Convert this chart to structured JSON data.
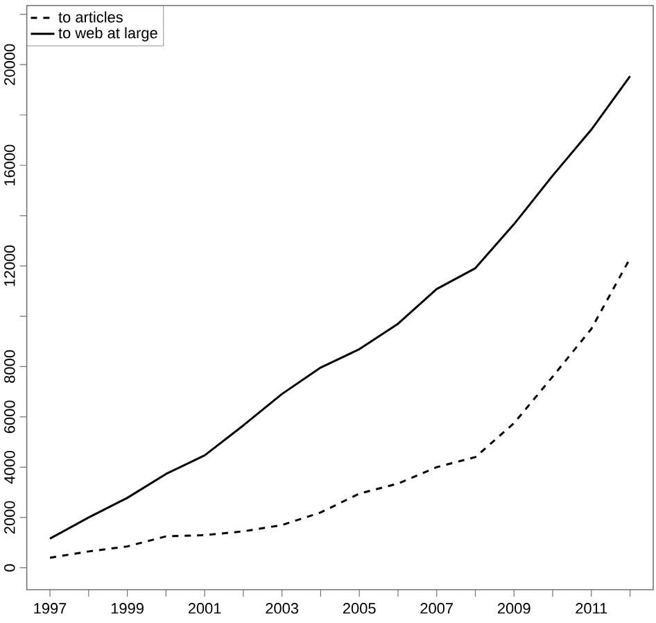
{
  "chart_data": {
    "type": "line",
    "x": [
      1997,
      1998,
      1999,
      2000,
      2001,
      2002,
      2003,
      2004,
      2005,
      2006,
      2007,
      2008,
      2009,
      2010,
      2011,
      2012
    ],
    "xlim": [
      1996.4,
      2012.6
    ],
    "ylim": [
      -870,
      22350
    ],
    "xticks": [
      1997,
      {
        "value": 1998,
        "label": null
      },
      1999,
      {
        "value": 2000,
        "label": null
      },
      2001,
      {
        "value": 2002,
        "label": null
      },
      2003,
      {
        "value": 2004,
        "label": null
      },
      2005,
      {
        "value": 2006,
        "label": null
      },
      2007,
      {
        "value": 2008,
        "label": null
      },
      2009,
      {
        "value": 2010,
        "label": null
      },
      2011,
      {
        "value": 2012,
        "label": null
      }
    ],
    "yticks": [
      0,
      2000,
      4000,
      6000,
      8000,
      {
        "value": 10000,
        "label": null
      },
      12000,
      {
        "value": 14000,
        "label": null
      },
      16000,
      {
        "value": 18000,
        "label": null
      },
      20000,
      {
        "value": 22000,
        "label": null
      }
    ],
    "legend": "top left",
    "series": [
      {
        "name": "to articles",
        "color": "#000000",
        "line_style": "dashed",
        "values": [
          400,
          650,
          850,
          1250,
          1300,
          1450,
          1700,
          2200,
          2950,
          3350,
          4000,
          4400,
          5750,
          7600,
          9500,
          12300
        ]
      },
      {
        "name": "to web at large",
        "color": "#000000",
        "line_style": "solid",
        "values": [
          1160,
          2000,
          2780,
          3730,
          4470,
          5660,
          6910,
          7960,
          8690,
          9700,
          11080,
          11910,
          13660,
          15590,
          17420,
          19540
        ]
      }
    ]
  }
}
